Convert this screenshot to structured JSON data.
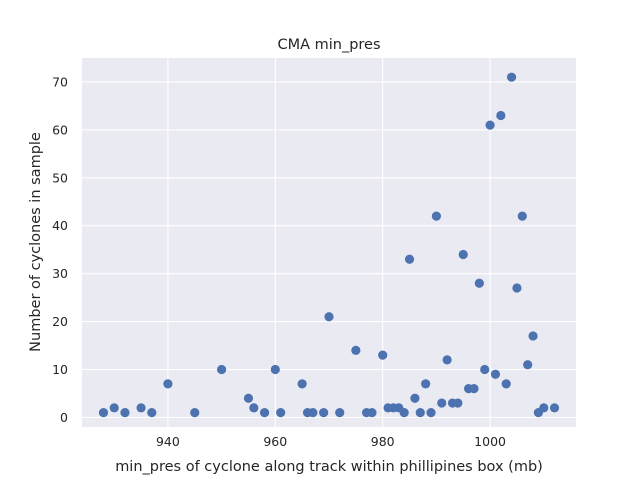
{
  "chart_data": {
    "type": "scatter",
    "title": "CMA min_pres",
    "xlabel": "min_pres of cyclone along track within phillipines box (mb)",
    "ylabel": "Number of cyclones in sample",
    "xlim": [
      924,
      1016
    ],
    "ylim": [
      -2,
      75
    ],
    "xticks": [
      940,
      960,
      980,
      1000
    ],
    "yticks": [
      0,
      10,
      20,
      30,
      40,
      50,
      60,
      70
    ],
    "grid": true,
    "background": "#EAEAF2",
    "marker_color": "#4C72B0",
    "points": [
      {
        "x": 928,
        "y": 1
      },
      {
        "x": 930,
        "y": 2
      },
      {
        "x": 932,
        "y": 1
      },
      {
        "x": 935,
        "y": 2
      },
      {
        "x": 937,
        "y": 1
      },
      {
        "x": 940,
        "y": 7
      },
      {
        "x": 945,
        "y": 1
      },
      {
        "x": 950,
        "y": 10
      },
      {
        "x": 955,
        "y": 4
      },
      {
        "x": 956,
        "y": 2
      },
      {
        "x": 958,
        "y": 1
      },
      {
        "x": 960,
        "y": 10
      },
      {
        "x": 961,
        "y": 1
      },
      {
        "x": 965,
        "y": 7
      },
      {
        "x": 966,
        "y": 1
      },
      {
        "x": 967,
        "y": 1
      },
      {
        "x": 969,
        "y": 1
      },
      {
        "x": 970,
        "y": 21
      },
      {
        "x": 972,
        "y": 1
      },
      {
        "x": 975,
        "y": 14
      },
      {
        "x": 977,
        "y": 1
      },
      {
        "x": 978,
        "y": 1
      },
      {
        "x": 980,
        "y": 13
      },
      {
        "x": 981,
        "y": 2
      },
      {
        "x": 982,
        "y": 2
      },
      {
        "x": 983,
        "y": 2
      },
      {
        "x": 984,
        "y": 1
      },
      {
        "x": 985,
        "y": 33
      },
      {
        "x": 986,
        "y": 4
      },
      {
        "x": 987,
        "y": 1
      },
      {
        "x": 988,
        "y": 7
      },
      {
        "x": 989,
        "y": 1
      },
      {
        "x": 990,
        "y": 42
      },
      {
        "x": 991,
        "y": 3
      },
      {
        "x": 992,
        "y": 12
      },
      {
        "x": 993,
        "y": 3
      },
      {
        "x": 994,
        "y": 3
      },
      {
        "x": 995,
        "y": 34
      },
      {
        "x": 996,
        "y": 6
      },
      {
        "x": 997,
        "y": 6
      },
      {
        "x": 998,
        "y": 28
      },
      {
        "x": 999,
        "y": 10
      },
      {
        "x": 1000,
        "y": 61
      },
      {
        "x": 1001,
        "y": 9
      },
      {
        "x": 1002,
        "y": 63
      },
      {
        "x": 1003,
        "y": 7
      },
      {
        "x": 1004,
        "y": 71
      },
      {
        "x": 1005,
        "y": 27
      },
      {
        "x": 1006,
        "y": 42
      },
      {
        "x": 1007,
        "y": 11
      },
      {
        "x": 1008,
        "y": 17
      },
      {
        "x": 1009,
        "y": 1
      },
      {
        "x": 1010,
        "y": 2
      },
      {
        "x": 1012,
        "y": 2
      }
    ]
  }
}
